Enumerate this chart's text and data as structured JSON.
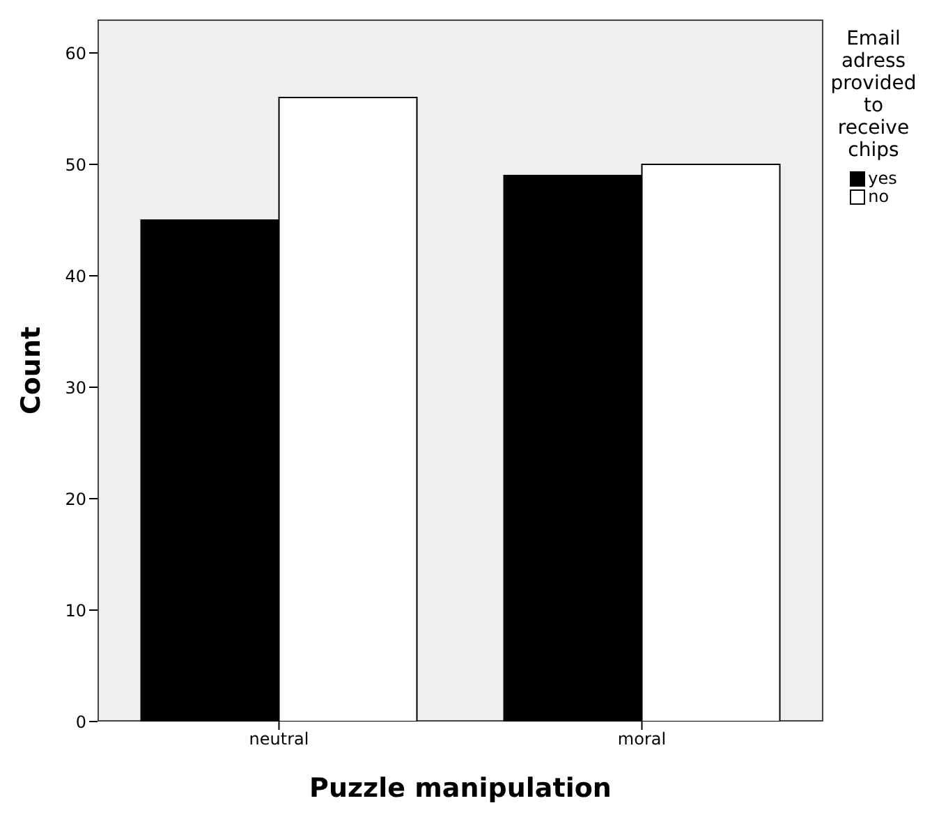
{
  "chart_data": {
    "type": "bar",
    "xlabel": "Puzzle manipulation",
    "ylabel": "Count",
    "legend_title": "Email adress provided to receive chips",
    "categories": [
      "neutral",
      "moral"
    ],
    "series": [
      {
        "name": "yes",
        "color": "#000000",
        "values": [
          45,
          49
        ]
      },
      {
        "name": "no",
        "color": "#ffffff",
        "values": [
          56,
          50
        ]
      }
    ],
    "ylim": [
      0,
      63
    ],
    "yticks": [
      0,
      10,
      20,
      30,
      40,
      50,
      60
    ],
    "legend": "top right"
  }
}
